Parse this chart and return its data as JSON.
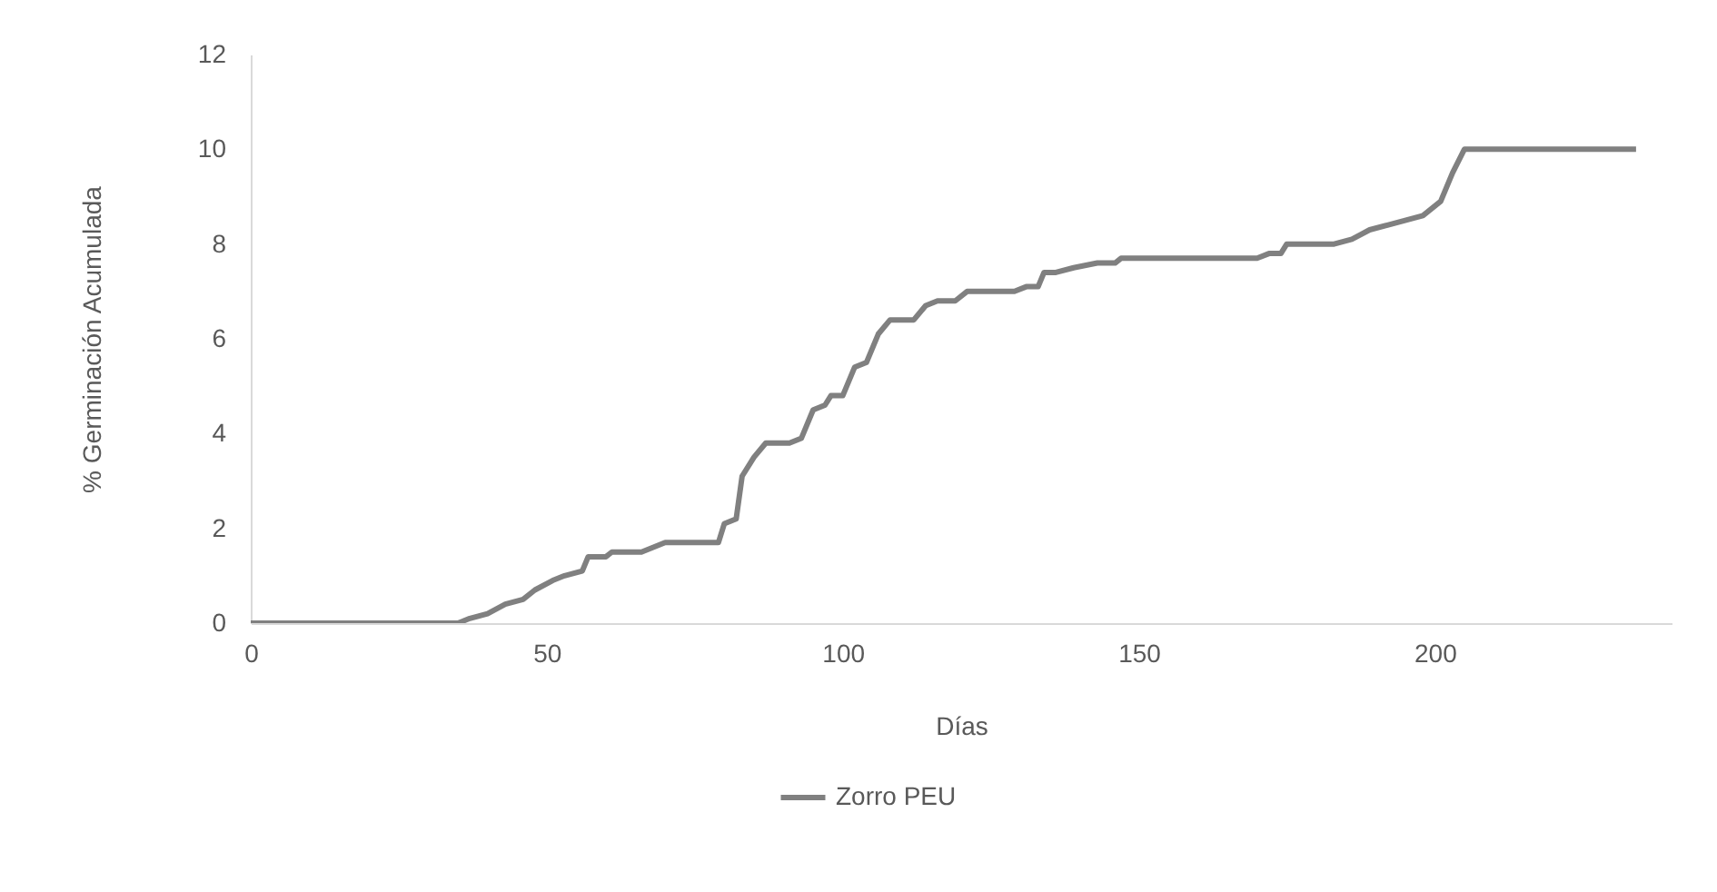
{
  "chart_data": {
    "type": "line",
    "xlabel": "Días",
    "ylabel": "% Germinación Acumulada",
    "legend": "bottom",
    "grid": false,
    "xlim": [
      0,
      240
    ],
    "xticks": [
      0,
      50,
      100,
      150,
      200
    ],
    "ylim": [
      0,
      12
    ],
    "yticks": [
      0,
      2,
      4,
      6,
      8,
      10,
      12
    ],
    "x": [
      0,
      35,
      37,
      40,
      43,
      46,
      48,
      51,
      53,
      56,
      57,
      60,
      61,
      66,
      68,
      70,
      79,
      80,
      82,
      83,
      85,
      87,
      91,
      93,
      95,
      97,
      98,
      100,
      102,
      104,
      106,
      108,
      112,
      114,
      116,
      119,
      121,
      129,
      131,
      133,
      134,
      136,
      139,
      143,
      146,
      147,
      170,
      172,
      174,
      175,
      183,
      186,
      189,
      192,
      195,
      198,
      201,
      203,
      205,
      234
    ],
    "series": [
      {
        "name": "Zorro PEU",
        "color": "#808080",
        "values": [
          0,
          0,
          0.1,
          0.2,
          0.4,
          0.5,
          0.7,
          0.9,
          1.0,
          1.1,
          1.4,
          1.4,
          1.5,
          1.5,
          1.6,
          1.7,
          1.7,
          2.1,
          2.2,
          3.1,
          3.5,
          3.8,
          3.8,
          3.9,
          4.5,
          4.6,
          4.8,
          4.8,
          5.4,
          5.5,
          6.1,
          6.4,
          6.4,
          6.7,
          6.8,
          6.8,
          7.0,
          7.0,
          7.1,
          7.1,
          7.4,
          7.4,
          7.5,
          7.6,
          7.6,
          7.7,
          7.7,
          7.8,
          7.8,
          8.0,
          8.0,
          8.1,
          8.3,
          8.4,
          8.5,
          8.6,
          8.9,
          9.5,
          10.0,
          10.0
        ]
      }
    ]
  }
}
